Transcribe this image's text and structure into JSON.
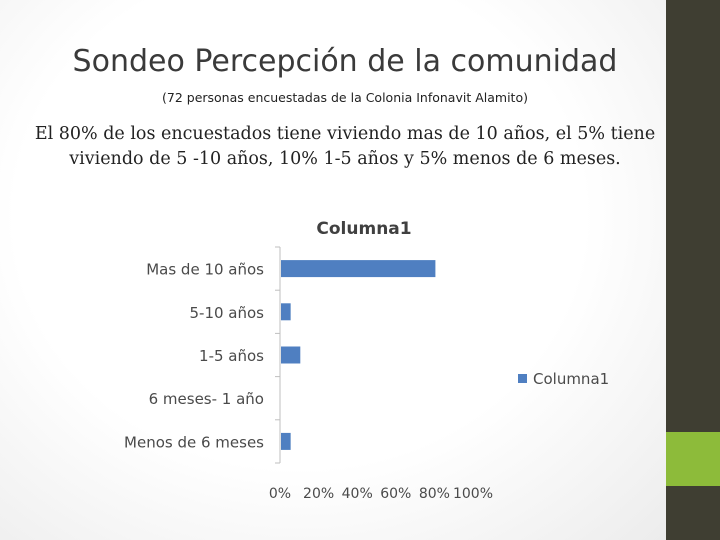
{
  "slide": {
    "title": "Sondeo Percepción de la comunidad",
    "subtitle": "(72 personas encuestadas de la Colonia Infonavit Alamito)",
    "body": "El 80% de los encuestados tiene viviendo mas de 10 años, el 5% tiene viviendo de 5 -10 años, 10% 1-5 años y 5% menos de 6 meses."
  },
  "colors": {
    "bar": "#4f7fc1",
    "sidebar": "#3f3e32",
    "accent": "#8dbb3a"
  },
  "chart_data": {
    "type": "bar",
    "orientation": "horizontal",
    "title": "Columna1",
    "categories": [
      "Mas de 10 años",
      "5-10 años",
      "1-5 años",
      "6 meses- 1 año",
      "Menos de 6 meses"
    ],
    "series": [
      {
        "name": "Columna1",
        "values": [
          80,
          5,
          10,
          0,
          5
        ]
      }
    ],
    "x_ticks": [
      "0%",
      "20%",
      "40%",
      "60%",
      "80%",
      "100%"
    ],
    "xlim": [
      0,
      100
    ],
    "grid": false,
    "legend": "right"
  }
}
